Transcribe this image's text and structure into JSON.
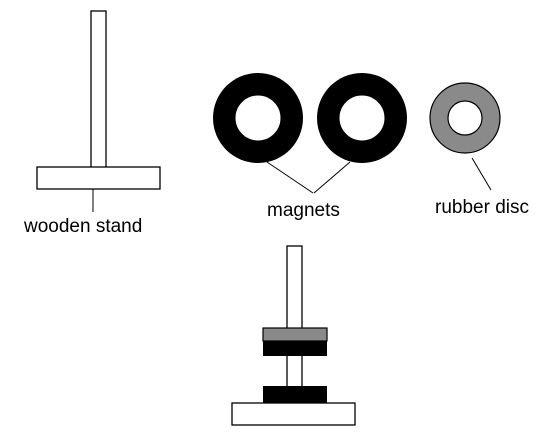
{
  "labels": {
    "stand": "wooden stand",
    "magnets": "magnets",
    "rubber": "rubber disc"
  },
  "colors": {
    "stand_fill": "#ffffff",
    "outline": "#000000",
    "magnet": "#000000",
    "rubber": "#8a8a8a",
    "hole": "#ffffff"
  }
}
